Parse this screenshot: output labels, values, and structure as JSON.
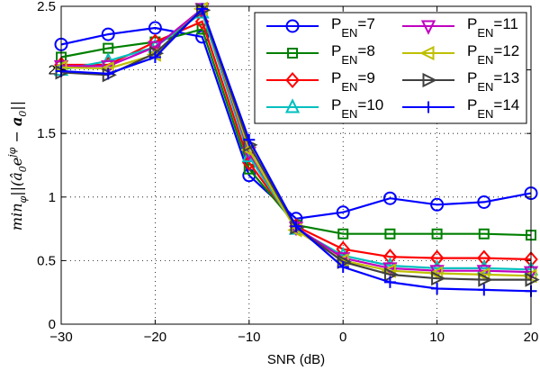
{
  "chart_data": {
    "type": "line",
    "title": "",
    "xlabel": "SNR (dB)",
    "ylabel": "min_φ||(â_0e^{jφ} − a_0||",
    "ylabel_parts": {
      "min": "min",
      "min_sub": "φ",
      "body": "||(â",
      "a_sub": "0",
      "e": "e",
      "exp": "jφ",
      "minus": " − ",
      "a2": "a",
      "a2_sub": "0",
      "end": "||"
    },
    "xlim": [
      -30,
      20
    ],
    "ylim": [
      0,
      2.5
    ],
    "xticks": [
      "-30",
      "-20",
      "-10",
      "0",
      "10",
      "20"
    ],
    "xtick_values": [
      -30,
      -20,
      -10,
      0,
      10,
      20
    ],
    "yticks": [
      "0",
      "0.5",
      "1",
      "1.5",
      "2",
      "2.5"
    ],
    "ytick_values": [
      0,
      0.5,
      1,
      1.5,
      2,
      2.5
    ],
    "grid": true,
    "legend_position": "top-right",
    "x": [
      -30,
      -25,
      -20,
      -15,
      -10,
      -5,
      0,
      5,
      10,
      15,
      20
    ],
    "series": [
      {
        "name": "P_EN=7",
        "color": "#0000ff",
        "marker": "circle",
        "values": [
          2.2,
          2.28,
          2.33,
          2.26,
          1.17,
          0.83,
          0.88,
          0.99,
          0.94,
          0.96,
          1.03
        ]
      },
      {
        "name": "P_EN=8",
        "color": "#008000",
        "marker": "square",
        "values": [
          2.1,
          2.17,
          2.22,
          2.32,
          1.22,
          0.78,
          0.71,
          0.71,
          0.71,
          0.71,
          0.7
        ]
      },
      {
        "name": "P_EN=9",
        "color": "#ff0000",
        "marker": "diamond",
        "values": [
          2.04,
          2.04,
          2.22,
          2.38,
          1.27,
          0.77,
          0.59,
          0.53,
          0.52,
          0.52,
          0.51
        ]
      },
      {
        "name": "P_EN=10",
        "color": "#00bfbf",
        "marker": "triangle-up",
        "values": [
          2.0,
          2.07,
          2.18,
          2.45,
          1.32,
          0.75,
          0.54,
          0.46,
          0.44,
          0.44,
          0.43
        ]
      },
      {
        "name": "P_EN=11",
        "color": "#bf00bf",
        "marker": "triangle-down",
        "values": [
          2.03,
          2.03,
          2.18,
          2.48,
          1.35,
          0.76,
          0.52,
          0.44,
          0.42,
          0.42,
          0.41
        ]
      },
      {
        "name": "P_EN=12",
        "color": "#bfbf00",
        "marker": "triangle-left",
        "values": [
          2.02,
          2.01,
          2.12,
          2.48,
          1.37,
          0.74,
          0.5,
          0.42,
          0.4,
          0.39,
          0.38
        ]
      },
      {
        "name": "P_EN=13",
        "color": "#404040",
        "marker": "triangle-right",
        "values": [
          1.98,
          1.96,
          2.13,
          2.47,
          1.41,
          0.76,
          0.49,
          0.39,
          0.36,
          0.35,
          0.35
        ]
      },
      {
        "name": "P_EN=14",
        "color": "#0000ff",
        "marker": "plus",
        "values": [
          1.99,
          1.97,
          2.1,
          2.48,
          1.45,
          0.77,
          0.45,
          0.33,
          0.28,
          0.27,
          0.26
        ]
      }
    ]
  }
}
